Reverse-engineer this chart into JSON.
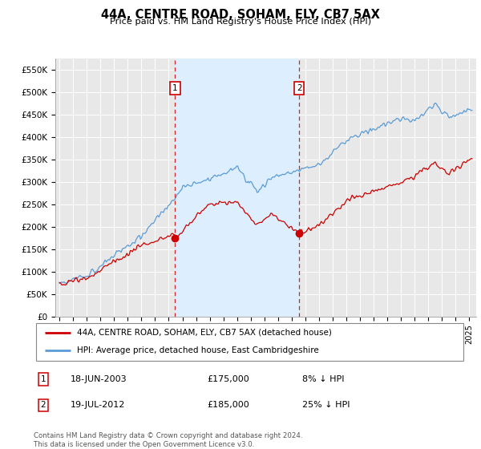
{
  "title": "44A, CENTRE ROAD, SOHAM, ELY, CB7 5AX",
  "subtitle": "Price paid vs. HM Land Registry's House Price Index (HPI)",
  "ylabel_ticks": [
    "£0",
    "£50K",
    "£100K",
    "£150K",
    "£200K",
    "£250K",
    "£300K",
    "£350K",
    "£400K",
    "£450K",
    "£500K",
    "£550K"
  ],
  "ytick_values": [
    0,
    50000,
    100000,
    150000,
    200000,
    250000,
    300000,
    350000,
    400000,
    450000,
    500000,
    550000
  ],
  "ylim": [
    0,
    575000
  ],
  "xlim_start": 1994.7,
  "xlim_end": 2025.5,
  "transaction1_date": 2003.46,
  "transaction1_price": 175000,
  "transaction1_label": "1",
  "transaction2_date": 2012.54,
  "transaction2_price": 185000,
  "transaction2_label": "2",
  "hpi_color": "#5b9bd5",
  "price_color": "#cc0000",
  "marker_color": "#cc0000",
  "dashed_line_color": "#cc0000",
  "legend_label_price": "44A, CENTRE ROAD, SOHAM, ELY, CB7 5AX (detached house)",
  "legend_label_hpi": "HPI: Average price, detached house, East Cambridgeshire",
  "annotation1_text": "18-JUN-2003",
  "annotation1_price": "£175,000",
  "annotation1_note": "8% ↓ HPI",
  "annotation2_text": "19-JUL-2012",
  "annotation2_price": "£185,000",
  "annotation2_note": "25% ↓ HPI",
  "footer": "Contains HM Land Registry data © Crown copyright and database right 2024.\nThis data is licensed under the Open Government Licence v3.0.",
  "background_color": "#ffffff",
  "plot_bg_color": "#e8e8e8",
  "shaded_region_color": "#ddeeff",
  "box_color": "#cc0000"
}
